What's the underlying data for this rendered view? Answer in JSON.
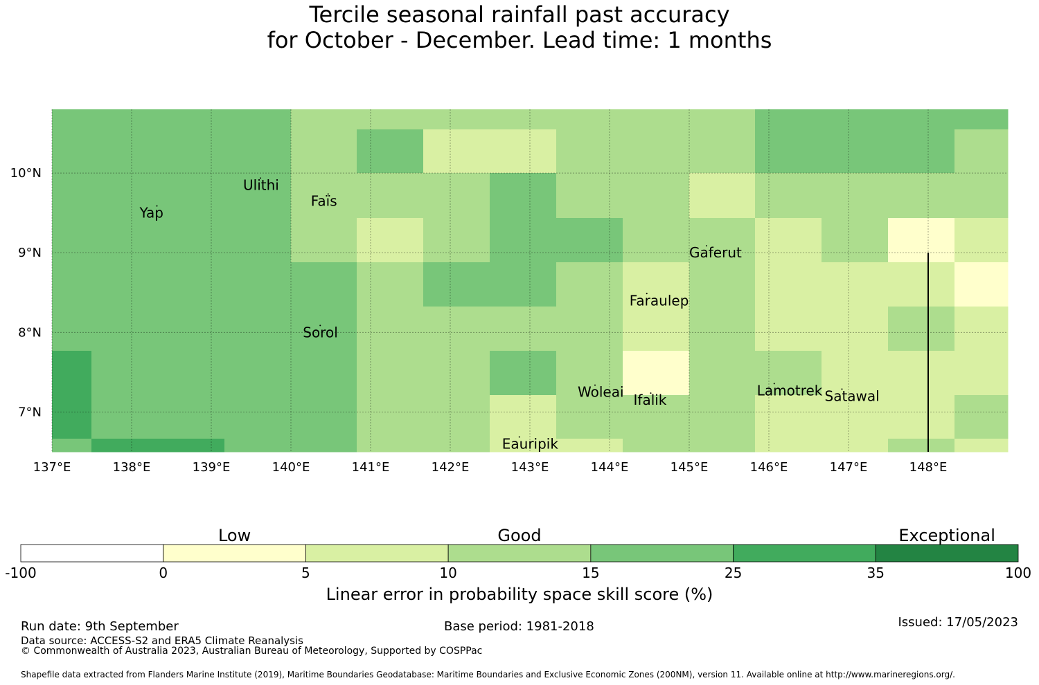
{
  "title": {
    "line1": "Tercile seasonal rainfall past accuracy",
    "line2": "for October - December. Lead time: 1 months"
  },
  "map": {
    "lon_range": [
      137.0,
      149.0
    ],
    "lat_range": [
      6.5,
      10.8
    ],
    "lat_ticks": [
      {
        "value": 10,
        "label": "10°N"
      },
      {
        "value": 9,
        "label": "9°N"
      },
      {
        "value": 8,
        "label": "8°N"
      },
      {
        "value": 7,
        "label": "7°N"
      }
    ],
    "lon_ticks": [
      {
        "value": 137,
        "label": "137°E"
      },
      {
        "value": 138,
        "label": "138°E"
      },
      {
        "value": 139,
        "label": "139°E"
      },
      {
        "value": 140,
        "label": "140°E"
      },
      {
        "value": 141,
        "label": "141°E"
      },
      {
        "value": 142,
        "label": "142°E"
      },
      {
        "value": 143,
        "label": "143°E"
      },
      {
        "value": 144,
        "label": "144°E"
      },
      {
        "value": 145,
        "label": "145°E"
      },
      {
        "value": 146,
        "label": "146°E"
      },
      {
        "value": 147,
        "label": "147°E"
      },
      {
        "value": 148,
        "label": "148°E"
      }
    ],
    "places": [
      {
        "name": "Yap",
        "lon": 138.1,
        "lat": 9.5
      },
      {
        "name": "Ulithi",
        "lon": 139.4,
        "lat": 9.85
      },
      {
        "name": "Faïs",
        "lon": 140.25,
        "lat": 9.65
      },
      {
        "name": "Gaferut",
        "lon": 145.0,
        "lat": 9.0
      },
      {
        "name": "Faraulep",
        "lon": 144.25,
        "lat": 8.4
      },
      {
        "name": "Sorol",
        "lon": 140.15,
        "lat": 8.0
      },
      {
        "name": "Woleai",
        "lon": 143.6,
        "lat": 7.25
      },
      {
        "name": "Ifalik",
        "lon": 144.3,
        "lat": 7.15
      },
      {
        "name": "Lamotrek",
        "lon": 145.85,
        "lat": 7.27
      },
      {
        "name": "Satawal",
        "lon": 146.7,
        "lat": 7.2
      },
      {
        "name": "Eauripik",
        "lon": 142.65,
        "lat": 6.6
      }
    ],
    "boundary_line": {
      "lon": 148.0,
      "lat_from": 6.5,
      "lat_to": 9.0
    }
  },
  "legend": {
    "categories": [
      {
        "label": "Low",
        "from": 0,
        "to": 5
      },
      {
        "label": "Good",
        "from": 10,
        "to": 15
      },
      {
        "label": "Exceptional",
        "from": 35,
        "to": 100
      }
    ],
    "bins": [
      {
        "from": "-100",
        "to": "0",
        "color": "#ffffff"
      },
      {
        "from": "0",
        "to": "5",
        "color": "#ffffcc"
      },
      {
        "from": "5",
        "to": "10",
        "color": "#d9f0a3"
      },
      {
        "from": "10",
        "to": "15",
        "color": "#addd8e"
      },
      {
        "from": "15",
        "to": "25",
        "color": "#78c679"
      },
      {
        "from": "25",
        "to": "35",
        "color": "#41ab5d"
      },
      {
        "from": "35",
        "to": "100",
        "color": "#238443"
      }
    ],
    "tick_labels": [
      "-100",
      "0",
      "5",
      "10",
      "15",
      "25",
      "35",
      "100"
    ],
    "title": "Linear error in probability space skill score (%)"
  },
  "footer": {
    "run_date": "Run date: 9th September",
    "base_period": "Base period: 1981-2018",
    "issued": "Issued: 17/05/2023",
    "data_source": "Data source: ACCESS-S2 and ERA5 Climate Reanalysis",
    "copyright": "© Commonwealth of Australia 2023, Australian Bureau of Meteorology, Supported by COSPPac",
    "shapefile": "Shapefile data extracted from Flanders Marine Institute (2019), Maritime Boundaries Geodatabase: Maritime Boundaries and Exclusive Economic Zones (200NM), version 11. Available online at http://www.marineregions.org/."
  }
}
